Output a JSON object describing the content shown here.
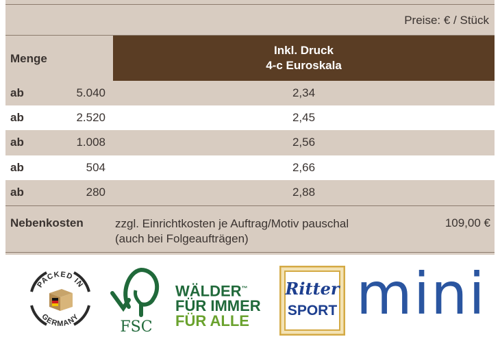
{
  "price_note": "Preise: € / Stück",
  "header": {
    "quantity_label": "Menge",
    "print_label_line1": "Inkl. Druck",
    "print_label_line2": "4-c Euroskala"
  },
  "rows": [
    {
      "prefix": "ab",
      "quantity": "5.040",
      "price": "2,34"
    },
    {
      "prefix": "ab",
      "quantity": "2.520",
      "price": "2,45"
    },
    {
      "prefix": "ab",
      "quantity": "1.008",
      "price": "2,56"
    },
    {
      "prefix": "ab",
      "quantity": "504",
      "price": "2,66"
    },
    {
      "prefix": "ab",
      "quantity": "280",
      "price": "2,88"
    }
  ],
  "extra_costs": {
    "label": "Nebenkosten",
    "text_line1": "zzgl. Einrichtkosten je Auftrag/Motiv pauschal",
    "text_line2": "(auch bei Folgeaufträgen)",
    "price": "109,00 €"
  },
  "logos": {
    "packed_top": "PACKED IN",
    "packed_bottom": "GERMANY",
    "fsc": "FSC",
    "forest_line1": "WÄLDER",
    "forest_tm": "™",
    "forest_line2": "FÜR IMMER",
    "forest_line3": "FÜR ALLE",
    "ritter": "Ritter",
    "sport": "SPORT",
    "mini": "mini"
  },
  "colors": {
    "table_bg": "#d8ccc1",
    "header_brown": "#5a3d24",
    "fsc_green": "#20693a",
    "mini_blue": "#2a55a0"
  }
}
